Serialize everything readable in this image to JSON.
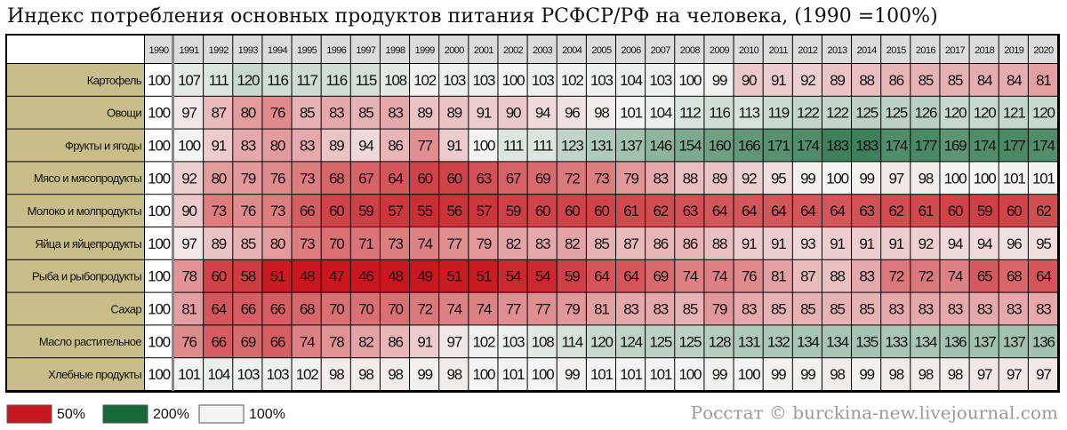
{
  "chart_data": {
    "type": "heatmap",
    "title": "Индекс потребления основных продуктов питания РСФСР/РФ на человека, (1990 =100%)",
    "source": "Росстат © burckina-new.livejournal.com",
    "columns": [
      "1990",
      "1991",
      "1992",
      "1993",
      "1994",
      "1995",
      "1996",
      "1997",
      "1998",
      "1999",
      "2000",
      "2001",
      "2002",
      "2003",
      "2004",
      "2005",
      "2006",
      "2007",
      "2008",
      "2009",
      "2010",
      "2011",
      "2012",
      "2013",
      "2014",
      "2015",
      "2016",
      "2017",
      "2018",
      "2019",
      "2020"
    ],
    "rows": [
      {
        "name": "Картофель",
        "values": [
          100,
          107,
          111,
          120,
          116,
          117,
          116,
          115,
          108,
          102,
          103,
          103,
          100,
          103,
          102,
          103,
          104,
          103,
          100,
          99,
          90,
          91,
          92,
          89,
          88,
          86,
          85,
          85,
          84,
          84,
          81
        ]
      },
      {
        "name": "Овощи",
        "values": [
          100,
          97,
          87,
          80,
          76,
          85,
          83,
          85,
          83,
          89,
          89,
          91,
          90,
          94,
          96,
          98,
          101,
          104,
          112,
          116,
          113,
          119,
          122,
          122,
          125,
          125,
          126,
          120,
          120,
          121,
          120
        ]
      },
      {
        "name": "Фрукты и ягоды",
        "values": [
          100,
          100,
          91,
          83,
          80,
          83,
          89,
          94,
          86,
          77,
          91,
          100,
          111,
          111,
          123,
          131,
          137,
          146,
          154,
          160,
          166,
          171,
          174,
          183,
          183,
          174,
          177,
          169,
          174,
          177,
          174
        ]
      },
      {
        "name": "Мясо и мясопродукты",
        "values": [
          100,
          92,
          80,
          79,
          76,
          73,
          68,
          67,
          64,
          60,
          60,
          63,
          67,
          69,
          72,
          73,
          79,
          83,
          88,
          89,
          92,
          95,
          99,
          100,
          99,
          97,
          98,
          100,
          100,
          101,
          101
        ]
      },
      {
        "name": "Молоко и молпродукты",
        "values": [
          100,
          90,
          73,
          76,
          73,
          66,
          60,
          59,
          57,
          55,
          56,
          57,
          59,
          60,
          60,
          60,
          61,
          62,
          63,
          64,
          64,
          64,
          64,
          64,
          63,
          62,
          61,
          60,
          59,
          60,
          62
        ]
      },
      {
        "name": "Яйца и яйцепродукты",
        "values": [
          100,
          97,
          89,
          85,
          80,
          73,
          70,
          71,
          73,
          74,
          77,
          79,
          82,
          83,
          82,
          85,
          87,
          86,
          86,
          88,
          91,
          91,
          93,
          91,
          91,
          91,
          92,
          94,
          94,
          96,
          95
        ]
      },
      {
        "name": "Рыба и рыбопродукты",
        "values": [
          100,
          78,
          60,
          58,
          51,
          48,
          47,
          46,
          48,
          49,
          51,
          51,
          54,
          54,
          59,
          64,
          64,
          69,
          74,
          74,
          76,
          81,
          87,
          88,
          83,
          72,
          72,
          74,
          65,
          68,
          64
        ]
      },
      {
        "name": "Сахар",
        "values": [
          100,
          81,
          64,
          66,
          66,
          68,
          70,
          70,
          70,
          72,
          74,
          74,
          77,
          77,
          79,
          81,
          83,
          83,
          85,
          79,
          83,
          85,
          85,
          85,
          85,
          83,
          83,
          83,
          83,
          83,
          83
        ]
      },
      {
        "name": "Масло растительное",
        "values": [
          100,
          76,
          66,
          69,
          66,
          74,
          78,
          82,
          86,
          91,
          97,
          102,
          103,
          108,
          114,
          120,
          124,
          125,
          125,
          128,
          131,
          132,
          134,
          134,
          135,
          133,
          134,
          136,
          137,
          137,
          136
        ]
      },
      {
        "name": "Хлебные продукты",
        "values": [
          100,
          101,
          104,
          103,
          103,
          102,
          98,
          98,
          98,
          99,
          98,
          100,
          101,
          100,
          99,
          101,
          101,
          101,
          100,
          99,
          100,
          99,
          99,
          98,
          99,
          98,
          98,
          98,
          97,
          97,
          97
        ]
      }
    ],
    "scale": [
      {
        "value": 50,
        "label": "50%",
        "color": "#c8171e"
      },
      {
        "value": 200,
        "label": "200%",
        "color": "#17693a"
      },
      {
        "value": 100,
        "label": "100%",
        "color": "#f4f4f4"
      }
    ]
  }
}
